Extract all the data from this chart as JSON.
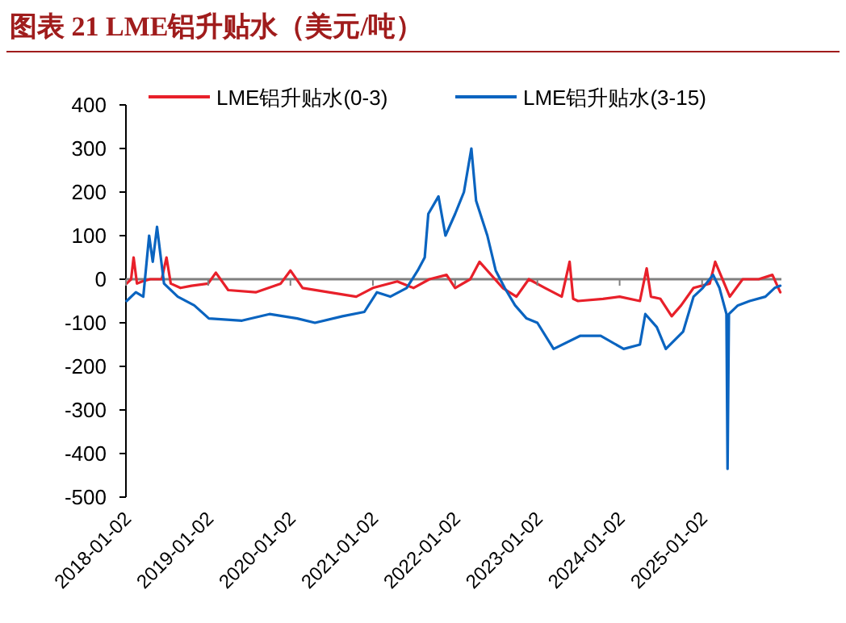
{
  "chart_data": {
    "type": "line",
    "title": "图表 21   LME铝升贴水（美元/吨）",
    "xlim": [
      "2018-01-02",
      "2025-12-20"
    ],
    "ylim": [
      -500,
      400
    ],
    "xticks": [
      "2018-01-02",
      "2019-01-02",
      "2020-01-02",
      "2021-01-02",
      "2022-01-02",
      "2023-01-02",
      "2024-01-02",
      "2025-01-02"
    ],
    "yticks": [
      -500,
      -400,
      -300,
      -200,
      -100,
      0,
      100,
      200,
      300,
      400
    ],
    "legend": "top",
    "series": [
      {
        "name": "LME铝升贴水(0-3)",
        "color": "#e8202a",
        "x": [
          "2018-01-05",
          "2018-01-25",
          "2018-02-05",
          "2018-02-20",
          "2018-03-15",
          "2018-04-20",
          "2018-06-10",
          "2018-07-01",
          "2018-07-20",
          "2018-09-01",
          "2018-10-20",
          "2019-01-02",
          "2019-02-05",
          "2019-04-01",
          "2019-08-01",
          "2019-11-20",
          "2020-01-02",
          "2020-02-25",
          "2020-06-20",
          "2020-10-20",
          "2021-01-02",
          "2021-04-20",
          "2021-07-01",
          "2021-09-10",
          "2021-11-25",
          "2022-01-02",
          "2022-03-10",
          "2022-04-20",
          "2022-08-01",
          "2022-10-01",
          "2022-11-25",
          "2023-02-05",
          "2023-04-20",
          "2023-05-25",
          "2023-06-10",
          "2023-07-01",
          "2023-10-20",
          "2024-01-02",
          "2024-04-01",
          "2024-05-01",
          "2024-05-20",
          "2024-07-01",
          "2024-08-20",
          "2024-10-01",
          "2024-11-25",
          "2025-02-05",
          "2025-03-01",
          "2025-05-05",
          "2025-07-01",
          "2025-09-10",
          "2025-11-10",
          "2025-12-15"
        ],
        "values": [
          -10,
          0,
          50,
          -10,
          -5,
          0,
          0,
          50,
          -10,
          -20,
          -15,
          -10,
          15,
          -25,
          -30,
          -10,
          20,
          -20,
          -30,
          -40,
          -20,
          -5,
          -20,
          0,
          10,
          -20,
          0,
          40,
          -20,
          -40,
          0,
          -20,
          -40,
          40,
          -45,
          -50,
          -45,
          -40,
          -50,
          25,
          -40,
          -45,
          -85,
          -60,
          -20,
          -10,
          40,
          -40,
          0,
          0,
          10,
          -30
        ]
      },
      {
        "name": "LME铝升贴水(3-15)",
        "color": "#0a64c0",
        "x": [
          "2018-01-05",
          "2018-02-15",
          "2018-03-20",
          "2018-04-15",
          "2018-05-01",
          "2018-05-20",
          "2018-06-20",
          "2018-08-20",
          "2018-11-01",
          "2019-01-05",
          "2019-06-01",
          "2019-10-01",
          "2020-02-01",
          "2020-04-20",
          "2020-08-20",
          "2020-11-25",
          "2021-01-20",
          "2021-03-20",
          "2021-06-01",
          "2021-07-20",
          "2021-08-20",
          "2021-09-05",
          "2021-10-20",
          "2021-11-20",
          "2022-01-02",
          "2022-02-10",
          "2022-03-15",
          "2022-04-05",
          "2022-05-25",
          "2022-07-01",
          "2022-08-10",
          "2022-09-25",
          "2022-11-15",
          "2023-01-02",
          "2023-03-15",
          "2023-07-10",
          "2023-10-10",
          "2024-01-20",
          "2024-04-01",
          "2024-04-25",
          "2024-06-15",
          "2024-07-25",
          "2024-10-10",
          "2024-11-25",
          "2025-01-05",
          "2025-02-20",
          "2025-03-20",
          "2025-04-20",
          "2025-04-25",
          "2025-05-01",
          "2025-06-10",
          "2025-08-01",
          "2025-10-10",
          "2025-11-20",
          "2025-12-15"
        ],
        "values": [
          -50,
          -30,
          -40,
          100,
          40,
          120,
          -10,
          -40,
          -60,
          -90,
          -95,
          -80,
          -90,
          -100,
          -85,
          -75,
          -30,
          -40,
          -20,
          20,
          50,
          150,
          190,
          100,
          150,
          200,
          300,
          180,
          100,
          20,
          -20,
          -60,
          -90,
          -100,
          -160,
          -130,
          -130,
          -160,
          -150,
          -80,
          -110,
          -160,
          -120,
          -40,
          -20,
          10,
          -20,
          -80,
          -435,
          -80,
          -60,
          -50,
          -40,
          -20,
          -15
        ]
      }
    ]
  }
}
